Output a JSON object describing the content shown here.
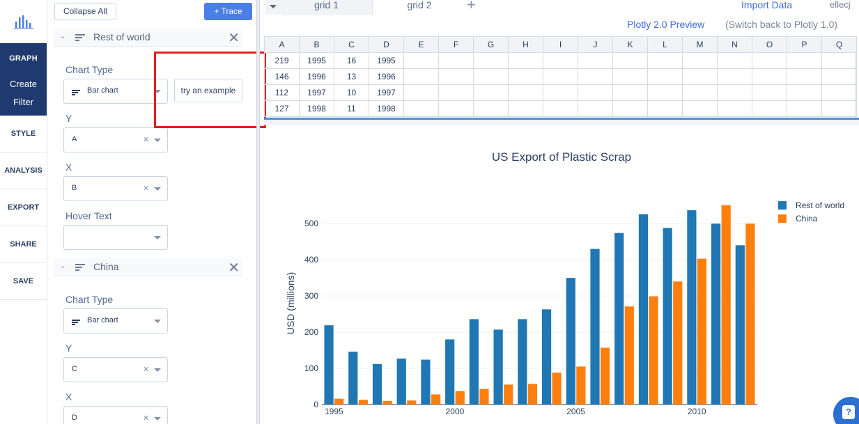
{
  "nav": {
    "graph_label": "GRAPH",
    "create_label": "Create",
    "filter_label": "Filter",
    "items": [
      "STYLE",
      "ANALYSIS",
      "EXPORT",
      "SHARE",
      "SAVE"
    ]
  },
  "panel": {
    "collapse_label": "Collapse All",
    "add_trace_label": "+ Trace",
    "try_example_label": "try an example",
    "traces": [
      {
        "name": "Rest of world",
        "chart_type_label": "Chart Type",
        "chart_type_value": "Bar chart",
        "y_label": "Y",
        "y_value": "A",
        "x_label": "X",
        "x_value": "B",
        "hover_label": "Hover Text",
        "hover_value": ""
      },
      {
        "name": "China",
        "chart_type_label": "Chart Type",
        "chart_type_value": "Bar chart",
        "y_label": "Y",
        "y_value": "C",
        "x_label": "X",
        "x_value": "D"
      }
    ]
  },
  "grid": {
    "tabs": [
      "grid 1",
      "grid 2"
    ],
    "import_label": "Import Data",
    "user_label": "ellecj",
    "preview_label": "Plotly 2.0 Preview",
    "switch_label": "(Switch back to Plotly 1.0)",
    "columns": [
      "A",
      "B",
      "C",
      "D",
      "E",
      "F",
      "G",
      "H",
      "I",
      "J",
      "K",
      "L",
      "M",
      "N",
      "O",
      "P",
      "Q"
    ],
    "rows": [
      [
        "219",
        "1995",
        "16",
        "1995"
      ],
      [
        "146",
        "1996",
        "13",
        "1996"
      ],
      [
        "112",
        "1997",
        "10",
        "1997"
      ],
      [
        "127",
        "1998",
        "11",
        "1998"
      ]
    ]
  },
  "colors": {
    "series1": "#1f77b4",
    "series2": "#ff7f0e",
    "accent": "#4a7ee8",
    "highlight": "#e02020"
  },
  "chart_data": {
    "type": "bar",
    "title": "US Export of Plastic Scrap",
    "xlabel": "",
    "ylabel": "USD (millions)",
    "x": [
      1995,
      1996,
      1997,
      1998,
      1999,
      2000,
      2001,
      2002,
      2003,
      2004,
      2005,
      2006,
      2007,
      2008,
      2009,
      2010,
      2011,
      2012
    ],
    "xticks": [
      "1995",
      "2000",
      "2005",
      "2010"
    ],
    "yticks": [
      "0",
      "100",
      "200",
      "300",
      "400",
      "500"
    ],
    "ylim": [
      0,
      560
    ],
    "legend": "top-right",
    "series": [
      {
        "name": "Rest of world",
        "values": [
          219,
          146,
          112,
          127,
          124,
          180,
          236,
          207,
          236,
          263,
          350,
          430,
          474,
          526,
          488,
          537,
          500,
          440
        ]
      },
      {
        "name": "China",
        "values": [
          16,
          13,
          10,
          11,
          28,
          37,
          43,
          55,
          57,
          88,
          105,
          157,
          271,
          299,
          340,
          403,
          551,
          500
        ]
      }
    ]
  }
}
